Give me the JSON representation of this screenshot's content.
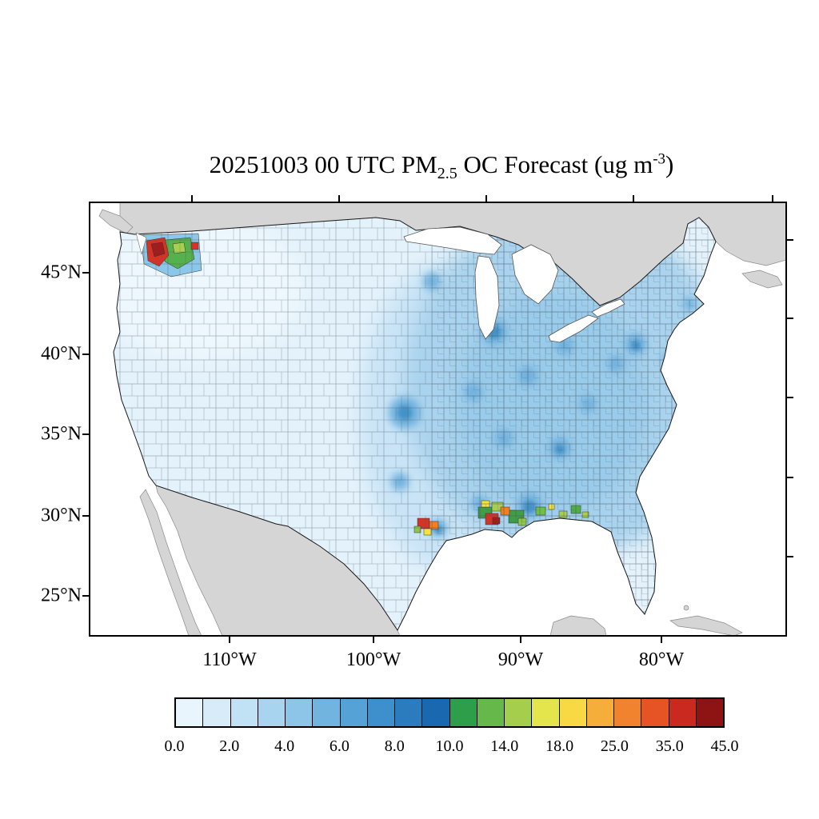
{
  "title": {
    "part1": "20251003 00 UTC PM",
    "subscript": "2.5",
    "part2": " OC Forecast (ug m",
    "superscript": "-3",
    "part3": ")"
  },
  "axes": {
    "lat_labels": [
      "45°N",
      "40°N",
      "35°N",
      "30°N",
      "25°N"
    ],
    "lon_labels": [
      "110°W",
      "100°W",
      "90°W",
      "80°W"
    ]
  },
  "colorbar": {
    "tick_labels": [
      "0.0",
      "2.0",
      "4.0",
      "6.0",
      "8.0",
      "10.0",
      "14.0",
      "18.0",
      "25.0",
      "35.0",
      "45.0"
    ],
    "colors": [
      "#E9F5FC",
      "#D7EBF9",
      "#C1E1F5",
      "#A8D4EF",
      "#8DC5E8",
      "#71B4E0",
      "#55A2D6",
      "#3D90CB",
      "#2A7CBE",
      "#1A68B0",
      "#2F9E4B",
      "#66B84A",
      "#A5CE4C",
      "#E4E44C",
      "#F8D943",
      "#F6AE3A",
      "#F1832E",
      "#E65425",
      "#C9291E",
      "#8E1313"
    ]
  },
  "map": {
    "landmass_color": "#d5d5d5",
    "ocean_color": "#ffffff",
    "region": "Continental United States (county-level choropleth)"
  },
  "chart_data": {
    "type": "heatmap",
    "title": "20251003 00 UTC PM2.5 OC Forecast (ug m-3)",
    "variable": "PM2.5 organic carbon (OC) forecast",
    "units": "ug m-3",
    "x_tick_labels": [
      "110°W",
      "100°W",
      "90°W",
      "80°W"
    ],
    "y_tick_labels": [
      "45°N",
      "40°N",
      "35°N",
      "30°N",
      "25°N"
    ],
    "colorbar_tick_values": [
      0.0,
      2.0,
      4.0,
      6.0,
      8.0,
      10.0,
      14.0,
      18.0,
      25.0,
      35.0,
      45.0
    ],
    "colorbar_colors": [
      "#E9F5FC",
      "#D7EBF9",
      "#C1E1F5",
      "#A8D4EF",
      "#8DC5E8",
      "#71B4E0",
      "#55A2D6",
      "#3D90CB",
      "#2A7CBE",
      "#1A68B0",
      "#2F9E4B",
      "#66B84A",
      "#A5CE4C",
      "#E4E44C",
      "#F8D943",
      "#F6AE3A",
      "#F1832E",
      "#E65425",
      "#C9291E",
      "#8E1313"
    ],
    "n_color_cells": 20,
    "legend_position": "bottom",
    "value_range": [
      0,
      45
    ],
    "observed_pattern": {
      "background": "0-2 ug m-3 over the western US; 2-6 ug m-3 over the central and eastern US with darker 4-8 patches near urban areas",
      "maxima": [
        {
          "region": "western Washington (Pacific Northwest)",
          "approx_value": "10 to >45"
        },
        {
          "region": "south-central Texas",
          "approx_value": "18-45"
        },
        {
          "region": "Texas Gulf coast",
          "approx_value": "14-45"
        },
        {
          "region": "southern Louisiana / lower Mississippi",
          "approx_value": "10 to >45"
        },
        {
          "region": "Mississippi-Alabama",
          "approx_value": "8-18"
        }
      ]
    }
  }
}
